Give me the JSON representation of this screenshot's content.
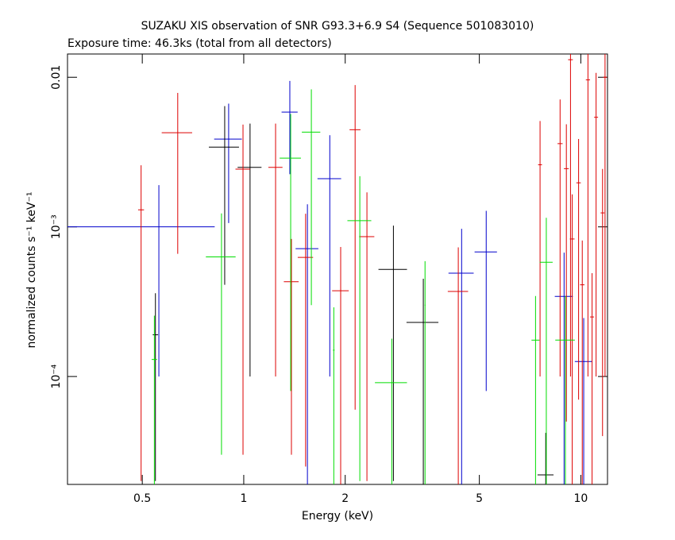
{
  "chart_data": {
    "type": "scatter",
    "title": "SUZAKU XIS observation of SNR G93.3+6.9 S4 (Sequence 501083010)",
    "subtitle": "Exposure time: 46.3ks (total from all detectors)",
    "x_label": "Energy (keV)",
    "y_label": "normalized counts s⁻¹ keV⁻¹",
    "xscale": "log",
    "yscale": "log",
    "xlim": [
      0.3,
      12
    ],
    "ylim": [
      1.9e-05,
      0.0143
    ],
    "xticks": [
      0.5,
      1,
      2,
      5,
      10
    ],
    "yticks": [
      {
        "value": 0.0001,
        "label": "10⁻⁴"
      },
      {
        "value": 0.001,
        "label": "10⁻³"
      },
      0.01
    ],
    "series": [
      {
        "color": "#0000cc",
        "x": [
          0.56,
          0.902,
          1.37,
          1.545,
          1.8,
          4.43,
          5.24,
          8.92,
          10.2
        ],
        "x_err": [
          0.26,
          0.085,
          0.075,
          0.12,
          0.145,
          0.38,
          0.4,
          0.55,
          0.6
        ],
        "values": [
          0.001,
          0.00386,
          0.00585,
          0.000715,
          0.0021,
          0.00049,
          0.00068,
          0.000343,
          0.000126
        ],
        "y_err": [
          0.0009,
          0.0028,
          0.0036,
          0.0007,
          0.002,
          0.00048,
          0.0006,
          0.00033,
          0.00012
        ]
      },
      {
        "color": "#000000",
        "x": [
          0.547,
          0.878,
          1.044,
          2.78,
          3.41,
          7.87
        ],
        "x_err": [
          0.01,
          0.09,
          0.085,
          0.27,
          0.37,
          0.43
        ],
        "values": [
          0.00019,
          0.00341,
          0.0025,
          0.00052,
          0.00023,
          2.2e-05
        ],
        "y_err": [
          0.00017,
          0.003,
          0.0024,
          0.0005,
          0.00022,
          2e-05
        ]
      },
      {
        "color": "#dd0000",
        "x": [
          0.496,
          0.637,
          0.995,
          1.243,
          1.385,
          1.526,
          1.939,
          2.14,
          2.32,
          4.33,
          7.57,
          9.32,
          10.5,
          11.8,
          8.68,
          9.06,
          11.1,
          11.6,
          10.1,
          9.43,
          10.8,
          9.85
        ],
        "x_err": [
          0.01,
          0.066,
          0.05,
          0.06,
          0.07,
          0.08,
          0.11,
          0.08,
          0.12,
          0.3,
          0.1,
          0.15,
          0.15,
          0.15,
          0.15,
          0.15,
          0.15,
          0.15,
          0.15,
          0.15,
          0.15,
          0.15
        ],
        "values": [
          0.0013,
          0.00426,
          0.00243,
          0.0025,
          0.00043,
          0.000625,
          0.000374,
          0.00446,
          0.00086,
          0.00037,
          0.0026,
          0.0131,
          0.0096,
          0.01,
          0.0036,
          0.00245,
          0.0054,
          0.00124,
          0.00041,
          0.00083,
          0.00025,
          0.00197
        ],
        "y_err": [
          0.00128,
          0.0036,
          0.0024,
          0.0024,
          0.0004,
          0.0006,
          0.00036,
          0.0044,
          0.00084,
          0.00036,
          0.0025,
          0.013,
          0.0095,
          0.0099,
          0.0035,
          0.0024,
          0.0053,
          0.0012,
          0.0004,
          0.00082,
          0.00024,
          0.0019
        ]
      },
      {
        "color": "#00dd00",
        "x": [
          0.543,
          0.859,
          1.378,
          1.587,
          1.85,
          2.21,
          2.75,
          3.45,
          7.34,
          7.9,
          9.0
        ],
        "x_err": [
          0.01,
          0.087,
          0.1,
          0.1,
          0.01,
          0.18,
          0.3,
          0.01,
          0.2,
          0.35,
          0.6
        ],
        "values": [
          0.00013,
          0.00063,
          0.00288,
          0.0043,
          0.00015,
          0.0011,
          9.1e-05,
          0.0003,
          0.000175,
          0.00058,
          0.000175
        ],
        "y_err": [
          0.000125,
          0.0006,
          0.0028,
          0.004,
          0.00014,
          0.00108,
          8.8e-05,
          0.00029,
          0.00017,
          0.00057,
          0.00017
        ]
      }
    ]
  }
}
